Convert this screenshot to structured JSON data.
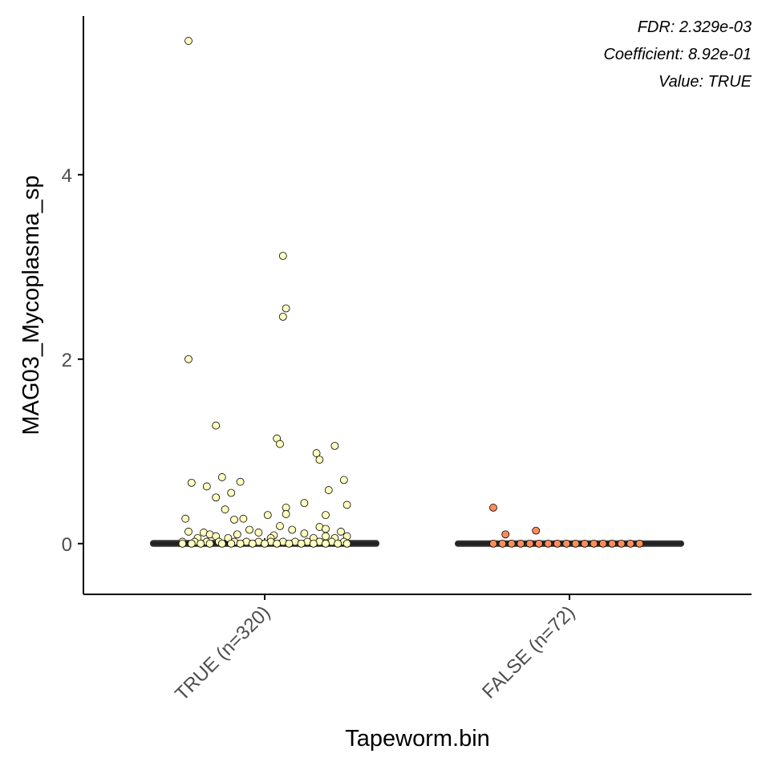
{
  "chart_data": {
    "type": "boxplot-jitter",
    "xlabel": "Tapeworm.bin",
    "ylabel": "MAG03_Mycoplasma_sp",
    "ylim": [
      -0.55,
      5.72
    ],
    "yticks": [
      0,
      2,
      4
    ],
    "annotations": [
      "FDR: 2.329e-03",
      "Coefficient: 8.92e-01",
      "Value: TRUE"
    ],
    "legend": "none",
    "grid": false,
    "groups": [
      {
        "label": "TRUE (n=320)",
        "n": 320,
        "color": "#FFFFBF",
        "median": 0.0,
        "q1": 0.0,
        "q3": 0.03,
        "whisker_low": 0.0,
        "whisker_high": 0.06,
        "points": [
          {
            "x": -0.25,
            "y": 5.45
          },
          {
            "x": -0.25,
            "y": 2.0
          },
          {
            "x": -0.16,
            "y": 1.28
          },
          {
            "x": 0.06,
            "y": 3.12
          },
          {
            "x": 0.07,
            "y": 2.55
          },
          {
            "x": 0.06,
            "y": 2.46
          },
          {
            "x": 0.04,
            "y": 1.14
          },
          {
            "x": 0.05,
            "y": 1.08
          },
          {
            "x": 0.23,
            "y": 1.06
          },
          {
            "x": 0.17,
            "y": 0.98
          },
          {
            "x": 0.18,
            "y": 0.91
          },
          {
            "x": 0.26,
            "y": 0.69
          },
          {
            "x": 0.21,
            "y": 0.58
          },
          {
            "x": 0.27,
            "y": 0.42
          },
          {
            "x": -0.14,
            "y": 0.72
          },
          {
            "x": -0.08,
            "y": 0.67
          },
          {
            "x": -0.24,
            "y": 0.66
          },
          {
            "x": -0.19,
            "y": 0.62
          },
          {
            "x": -0.11,
            "y": 0.55
          },
          {
            "x": -0.16,
            "y": 0.5
          },
          {
            "x": 0.13,
            "y": 0.44
          },
          {
            "x": 0.07,
            "y": 0.39
          },
          {
            "x": 0.07,
            "y": 0.32
          },
          {
            "x": -0.13,
            "y": 0.37
          },
          {
            "x": 0.01,
            "y": 0.31
          },
          {
            "x": 0.2,
            "y": 0.31
          },
          {
            "x": -0.26,
            "y": 0.27
          },
          {
            "x": -0.07,
            "y": 0.27
          },
          {
            "x": -0.1,
            "y": 0.26
          },
          {
            "x": 0.05,
            "y": 0.19
          },
          {
            "x": 0.18,
            "y": 0.18
          },
          {
            "x": 0.2,
            "y": 0.16
          },
          {
            "x": -0.05,
            "y": 0.15
          },
          {
            "x": 0.09,
            "y": 0.15
          },
          {
            "x": 0.25,
            "y": 0.13
          },
          {
            "x": -0.25,
            "y": 0.13
          },
          {
            "x": -0.2,
            "y": 0.12
          },
          {
            "x": -0.02,
            "y": 0.12
          },
          {
            "x": 0.13,
            "y": 0.11
          },
          {
            "x": -0.18,
            "y": 0.1
          },
          {
            "x": -0.09,
            "y": 0.1
          },
          {
            "x": 0.03,
            "y": 0.09
          },
          {
            "x": -0.16,
            "y": 0.08
          },
          {
            "x": 0.2,
            "y": 0.08
          },
          {
            "x": 0.27,
            "y": 0.08
          },
          {
            "x": -0.22,
            "y": 0.06
          },
          {
            "x": -0.12,
            "y": 0.06
          },
          {
            "x": 0.02,
            "y": 0.06
          },
          {
            "x": 0.16,
            "y": 0.06
          },
          {
            "x": 0.23,
            "y": 0.06
          },
          {
            "x": -0.27,
            "y": 0.02
          },
          {
            "x": -0.23,
            "y": 0.02
          },
          {
            "x": -0.19,
            "y": 0.02
          },
          {
            "x": -0.15,
            "y": 0.02
          },
          {
            "x": -0.1,
            "y": 0.02
          },
          {
            "x": -0.06,
            "y": 0.02
          },
          {
            "x": -0.02,
            "y": 0.02
          },
          {
            "x": 0.02,
            "y": 0.02
          },
          {
            "x": 0.06,
            "y": 0.02
          },
          {
            "x": 0.1,
            "y": 0.02
          },
          {
            "x": 0.14,
            "y": 0.02
          },
          {
            "x": 0.18,
            "y": 0.02
          },
          {
            "x": 0.22,
            "y": 0.02
          },
          {
            "x": 0.26,
            "y": 0.02
          },
          {
            "x": -0.27,
            "y": 0.0
          },
          {
            "x": -0.24,
            "y": 0.0
          },
          {
            "x": -0.21,
            "y": 0.0
          },
          {
            "x": -0.18,
            "y": 0.0
          },
          {
            "x": -0.14,
            "y": 0.0
          },
          {
            "x": -0.11,
            "y": 0.0
          },
          {
            "x": -0.08,
            "y": 0.0
          },
          {
            "x": -0.04,
            "y": 0.0
          },
          {
            "x": 0.0,
            "y": 0.0
          },
          {
            "x": 0.04,
            "y": 0.0
          },
          {
            "x": 0.08,
            "y": 0.0
          },
          {
            "x": 0.12,
            "y": 0.0
          },
          {
            "x": 0.16,
            "y": 0.0
          },
          {
            "x": 0.2,
            "y": 0.0
          },
          {
            "x": 0.24,
            "y": 0.0
          },
          {
            "x": 0.27,
            "y": 0.0
          }
        ]
      },
      {
        "label": "FALSE (n=72)",
        "n": 72,
        "color": "#FC8D59",
        "median": 0.0,
        "q1": 0.0,
        "q3": 0.0,
        "whisker_low": 0.0,
        "whisker_high": 0.0,
        "points": [
          {
            "x": -0.25,
            "y": 0.39
          },
          {
            "x": -0.21,
            "y": 0.1
          },
          {
            "x": -0.11,
            "y": 0.14
          },
          {
            "x": -0.25,
            "y": 0.0
          },
          {
            "x": -0.22,
            "y": 0.0
          },
          {
            "x": -0.19,
            "y": 0.0
          },
          {
            "x": -0.16,
            "y": 0.0
          },
          {
            "x": -0.13,
            "y": 0.0
          },
          {
            "x": -0.1,
            "y": 0.0
          },
          {
            "x": -0.07,
            "y": 0.0
          },
          {
            "x": -0.04,
            "y": 0.0
          },
          {
            "x": -0.01,
            "y": 0.0
          },
          {
            "x": 0.02,
            "y": 0.0
          },
          {
            "x": 0.05,
            "y": 0.0
          },
          {
            "x": 0.08,
            "y": 0.0
          },
          {
            "x": 0.11,
            "y": 0.0
          },
          {
            "x": 0.14,
            "y": 0.0
          },
          {
            "x": 0.17,
            "y": 0.0
          },
          {
            "x": 0.2,
            "y": 0.0
          },
          {
            "x": 0.23,
            "y": 0.0
          }
        ]
      }
    ]
  }
}
